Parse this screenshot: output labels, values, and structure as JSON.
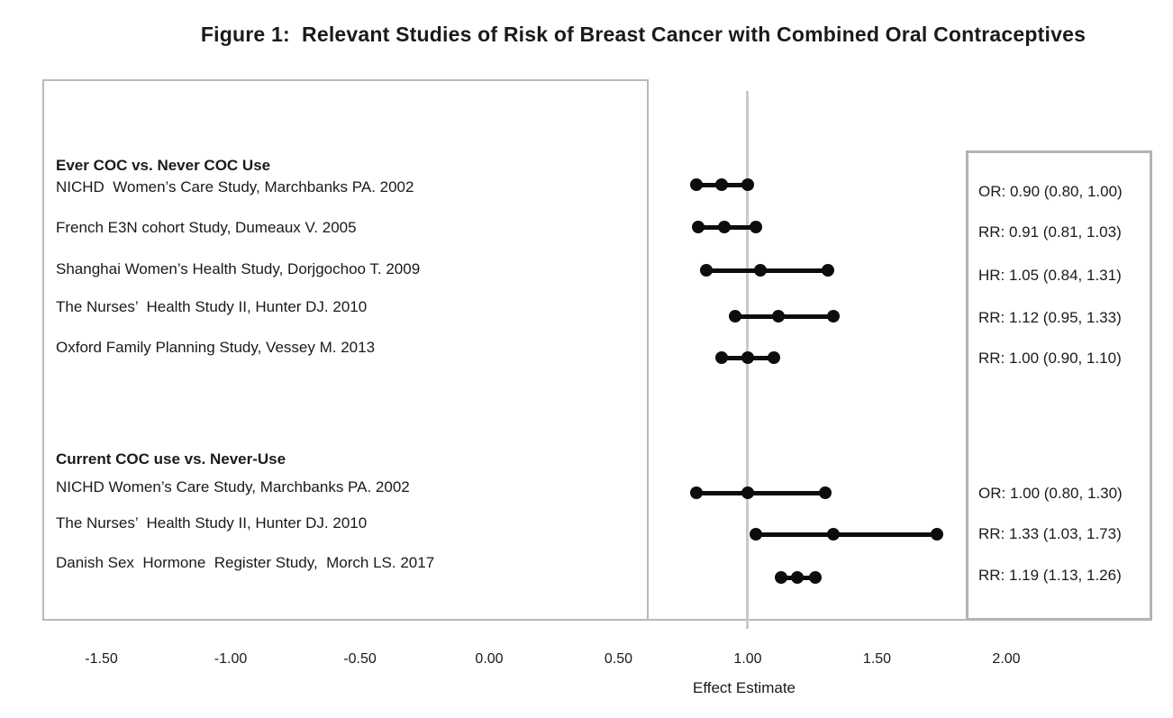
{
  "title": "Figure 1:  Relevant Studies of Risk of Breast Cancer with Combined Oral Contraceptives",
  "colors": {
    "marker": "#0d0d0d",
    "text": "#1a1a1a",
    "frame_border": "#b9b9b9",
    "estimates_box_border": "#b3b3b3",
    "reference_line": "#c9c9c9"
  },
  "chart_data": {
    "type": "forest",
    "xlabel": "Effect Estimate",
    "x_ticks": [
      "-1.50",
      "-1.00",
      "-0.50",
      "0.00",
      "0.50",
      "1.00",
      "1.50",
      "2.00"
    ],
    "x_tick_values": [
      -1.5,
      -1.0,
      -0.5,
      0.0,
      0.5,
      1.0,
      1.5,
      2.0
    ],
    "xlim": [
      -1.73,
      2.56
    ],
    "reference_line_value": 1.0,
    "grid": false,
    "legend": false,
    "groups": [
      {
        "heading": "Ever COC vs. Never COC Use",
        "studies": [
          {
            "label": "NICHD  Women’s Care Study, Marchbanks PA. 2002",
            "measure": "OR",
            "value": 0.9,
            "ci_low": 0.8,
            "ci_high": 1.0,
            "estimate_label": "OR: 0.90 (0.80, 1.00)"
          },
          {
            "label": "French E3N cohort Study, Dumeaux V. 2005",
            "measure": "RR",
            "value": 0.91,
            "ci_low": 0.81,
            "ci_high": 1.03,
            "estimate_label": "RR: 0.91 (0.81, 1.03)"
          },
          {
            "label": "Shanghai Women’s Health Study, Dorjgochoo T. 2009",
            "measure": "HR",
            "value": 1.05,
            "ci_low": 0.84,
            "ci_high": 1.31,
            "estimate_label": "HR: 1.05 (0.84, 1.31)"
          },
          {
            "label": "The Nurses’  Health Study II, Hunter DJ. 2010",
            "measure": "RR",
            "value": 1.12,
            "ci_low": 0.95,
            "ci_high": 1.33,
            "estimate_label": "RR: 1.12 (0.95, 1.33)"
          },
          {
            "label": "Oxford Family Planning Study, Vessey M. 2013",
            "measure": "RR",
            "value": 1.0,
            "ci_low": 0.9,
            "ci_high": 1.1,
            "estimate_label": "RR: 1.00 (0.90, 1.10)"
          }
        ]
      },
      {
        "heading": "Current COC use vs. Never-Use",
        "studies": [
          {
            "label": "NICHD Women’s Care Study, Marchbanks PA. 2002",
            "measure": "OR",
            "value": 1.0,
            "ci_low": 0.8,
            "ci_high": 1.3,
            "estimate_label": "OR: 1.00 (0.80, 1.30)"
          },
          {
            "label": "The Nurses’  Health Study II, Hunter DJ. 2010",
            "measure": "RR",
            "value": 1.33,
            "ci_low": 1.03,
            "ci_high": 1.73,
            "estimate_label": "RR: 1.33 (1.03, 1.73)"
          },
          {
            "label": "Danish Sex  Hormone  Register Study,  Morch LS. 2017",
            "measure": "RR",
            "value": 1.19,
            "ci_low": 1.13,
            "ci_high": 1.26,
            "estimate_label": "RR: 1.19 (1.13, 1.26)"
          }
        ]
      }
    ]
  }
}
